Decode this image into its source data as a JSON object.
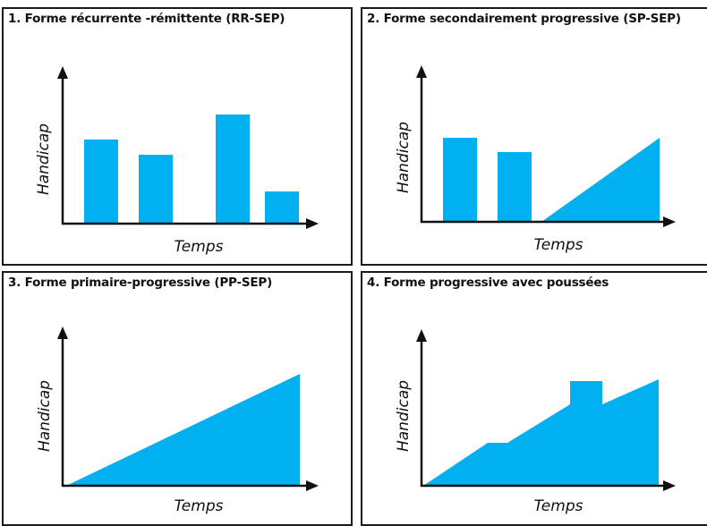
{
  "panels": [
    {
      "title": "1. Forme récurrente -rémittente (RR-SEP)",
      "ylabel": "Handicap",
      "xlabel": "Temps"
    },
    {
      "title": "2. Forme secondairement progressive (SP-SEP)",
      "ylabel": "Handicap",
      "xlabel": "Temps"
    },
    {
      "title": "3. Forme primaire-progressive (PP-SEP)",
      "ylabel": "Handicap",
      "xlabel": "Temps"
    },
    {
      "title": "4. Forme progressive avec poussées",
      "ylabel": "Handicap",
      "xlabel": "Temps"
    }
  ],
  "colors": {
    "fill": "#00b0f0",
    "axis": "#111111",
    "border": "#1a1a1a"
  }
}
